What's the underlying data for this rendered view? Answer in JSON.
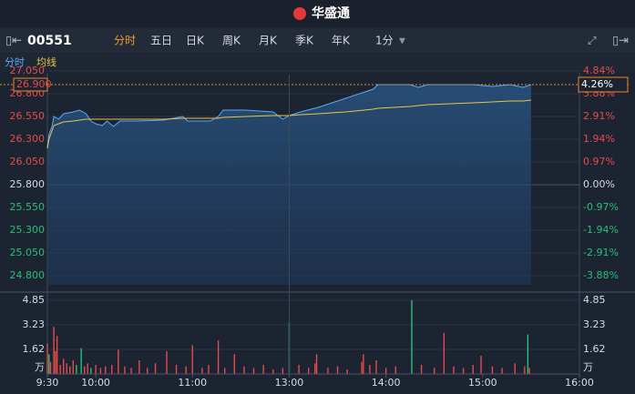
{
  "header": {
    "brand": "华盛通"
  },
  "toolbar": {
    "symbol": "00551",
    "tabs": [
      "分时",
      "五日",
      "日K",
      "周K",
      "月K",
      "季K",
      "年K",
      "1分"
    ]
  },
  "chart_data": [
    {
      "type": "line",
      "x": [
        0,
        1,
        3,
        4,
        7,
        10,
        16,
        20,
        24,
        27,
        30,
        34,
        37,
        41,
        45,
        55,
        72,
        84,
        87,
        101,
        106,
        109,
        123,
        140,
        146,
        150,
        157,
        168,
        185,
        202,
        205,
        225,
        230,
        236,
        264,
        276,
        287,
        295,
        300
      ],
      "series": [
        {
          "name": "分时",
          "color": "#5aa9ff",
          "values": [
            26.2,
            26.35,
            26.45,
            26.55,
            26.52,
            26.58,
            26.6,
            26.62,
            26.58,
            26.5,
            26.47,
            26.45,
            26.5,
            26.44,
            26.5,
            26.5,
            26.51,
            26.55,
            26.5,
            26.5,
            26.55,
            26.62,
            26.62,
            26.6,
            26.52,
            26.56,
            26.6,
            26.65,
            26.75,
            26.85,
            26.9,
            26.9,
            26.87,
            26.9,
            26.9,
            26.88,
            26.9,
            26.87,
            26.9
          ]
        },
        {
          "name": "均线",
          "color": "#e8c548",
          "values": [
            26.2,
            26.3,
            26.4,
            26.45,
            26.47,
            26.49,
            26.5,
            26.51,
            26.52,
            26.52,
            26.52,
            26.52,
            26.52,
            26.52,
            26.52,
            26.52,
            26.52,
            26.53,
            26.53,
            26.53,
            26.53,
            26.54,
            26.55,
            26.56,
            26.56,
            26.56,
            26.57,
            26.58,
            26.6,
            26.63,
            26.64,
            26.66,
            26.67,
            26.68,
            26.7,
            26.71,
            26.72,
            26.72,
            26.73
          ]
        }
      ],
      "xlim": [
        0,
        330
      ],
      "ylim": [
        24.7,
        27.05
      ],
      "yticks": [
        {
          "value": 27.05,
          "label": "27.050"
        },
        {
          "value": 26.8,
          "label": "26.800"
        },
        {
          "value": 26.55,
          "label": "26.550"
        },
        {
          "value": 26.3,
          "label": "26.300"
        },
        {
          "value": 26.05,
          "label": "26.050"
        },
        {
          "value": 25.8,
          "label": "25.800"
        },
        {
          "value": 25.55,
          "label": "25.550"
        },
        {
          "value": 25.3,
          "label": "25.300"
        },
        {
          "value": 25.05,
          "label": "25.050"
        },
        {
          "value": 24.8,
          "label": "24.800"
        }
      ],
      "y2lim": [
        -4.264,
        4.845
      ],
      "y2ticks": [
        {
          "value": 4.84,
          "label": "4.84%"
        },
        {
          "value": 3.88,
          "label": "3.88%"
        },
        {
          "value": 2.91,
          "label": "2.91%"
        },
        {
          "value": 1.94,
          "label": "1.94%"
        },
        {
          "value": 0.97,
          "label": "0.97%"
        },
        {
          "value": 0,
          "label": "0.00%"
        },
        {
          "value": -0.97,
          "label": "-0.97%"
        },
        {
          "value": -1.94,
          "label": "-1.94%"
        },
        {
          "value": -2.91,
          "label": "-2.91%"
        },
        {
          "value": -3.88,
          "label": "-3.88%"
        }
      ],
      "last_price": {
        "value": 26.9,
        "label": "26.900"
      },
      "last_change": {
        "value": 4.26,
        "label": "4.26%"
      },
      "grid": true
    },
    {
      "type": "bar",
      "x": [
        0,
        1,
        2,
        4,
        5,
        6,
        8,
        10,
        12,
        14,
        16,
        18,
        21,
        23,
        25,
        27,
        30,
        33,
        36,
        40,
        44,
        48,
        52,
        57,
        62,
        67,
        74,
        80,
        86,
        90,
        96,
        100,
        106,
        110,
        116,
        122,
        128,
        134,
        140,
        146,
        150,
        156,
        162,
        166,
        167,
        174,
        180,
        186,
        195,
        196,
        200,
        204,
        210,
        216,
        226,
        232,
        240,
        246,
        252,
        258,
        264,
        269,
        276,
        282,
        290,
        296,
        298,
        299
      ],
      "values": [
        2.0,
        1.3,
        0.8,
        3.1,
        1.5,
        2.5,
        0.6,
        1.0,
        0.7,
        0.5,
        0.9,
        0.6,
        1.7,
        0.5,
        0.7,
        0.4,
        0.6,
        0.4,
        0.5,
        0.6,
        1.6,
        0.5,
        0.4,
        0.9,
        0.4,
        0.7,
        1.5,
        0.6,
        0.5,
        1.9,
        0.4,
        0.6,
        2.2,
        0.4,
        1.3,
        0.5,
        0.4,
        0.6,
        0.3,
        0.4,
        3.4,
        0.6,
        0.4,
        0.7,
        1.3,
        0.4,
        0.5,
        0.3,
        0.8,
        1.3,
        0.6,
        0.9,
        0.4,
        0.5,
        4.85,
        0.6,
        0.4,
        2.7,
        0.5,
        0.4,
        0.6,
        1.2,
        0.5,
        0.4,
        0.7,
        0.5,
        2.6,
        0.4
      ],
      "colors": [
        "#e84b4b",
        "#2bbf7a",
        "#e84b4b",
        "#e84b4b",
        "#e84b4b",
        "#e84b4b",
        "#e84b4b",
        "#e84b4b",
        "#e84b4b",
        "#e84b4b",
        "#e84b4b",
        "#2bbf7a",
        "#2bbf7a",
        "#e84b4b",
        "#e84b4b",
        "#2bbf7a",
        "#e84b4b",
        "#e84b4b",
        "#e84b4b",
        "#e84b4b",
        "#e84b4b",
        "#e84b4b",
        "#e84b4b",
        "#e84b4b",
        "#e84b4b",
        "#e84b4b",
        "#e84b4b",
        "#e84b4b",
        "#e84b4b",
        "#e84b4b",
        "#e84b4b",
        "#e84b4b",
        "#e84b4b",
        "#e84b4b",
        "#e84b4b",
        "#e84b4b",
        "#e84b4b",
        "#e84b4b",
        "#e84b4b",
        "#e84b4b",
        "#2bbf7a",
        "#e84b4b",
        "#e84b4b",
        "#e84b4b",
        "#e84b4b",
        "#e84b4b",
        "#e84b4b",
        "#e84b4b",
        "#e84b4b",
        "#e84b4b",
        "#e84b4b",
        "#e84b4b",
        "#e84b4b",
        "#e84b4b",
        "#2bbf7a",
        "#e84b4b",
        "#e84b4b",
        "#e84b4b",
        "#e84b4b",
        "#e84b4b",
        "#e84b4b",
        "#e84b4b",
        "#e84b4b",
        "#e84b4b",
        "#e84b4b",
        "#e84b4b",
        "#2bbf7a",
        "#e84b4b"
      ],
      "xlim": [
        0,
        330
      ],
      "xticks": [
        {
          "value": 0,
          "label": "9:30"
        },
        {
          "value": 30,
          "label": "10:00"
        },
        {
          "value": 90,
          "label": "11:00"
        },
        {
          "value": 150,
          "label": "13:00"
        },
        {
          "value": 210,
          "label": "14:00"
        },
        {
          "value": 270,
          "label": "15:00"
        },
        {
          "value": 330,
          "label": "16:00"
        }
      ],
      "ylim": [
        0,
        4.85
      ],
      "yticks": [
        4.85,
        3.23,
        1.62
      ],
      "y_unit": "万"
    }
  ]
}
